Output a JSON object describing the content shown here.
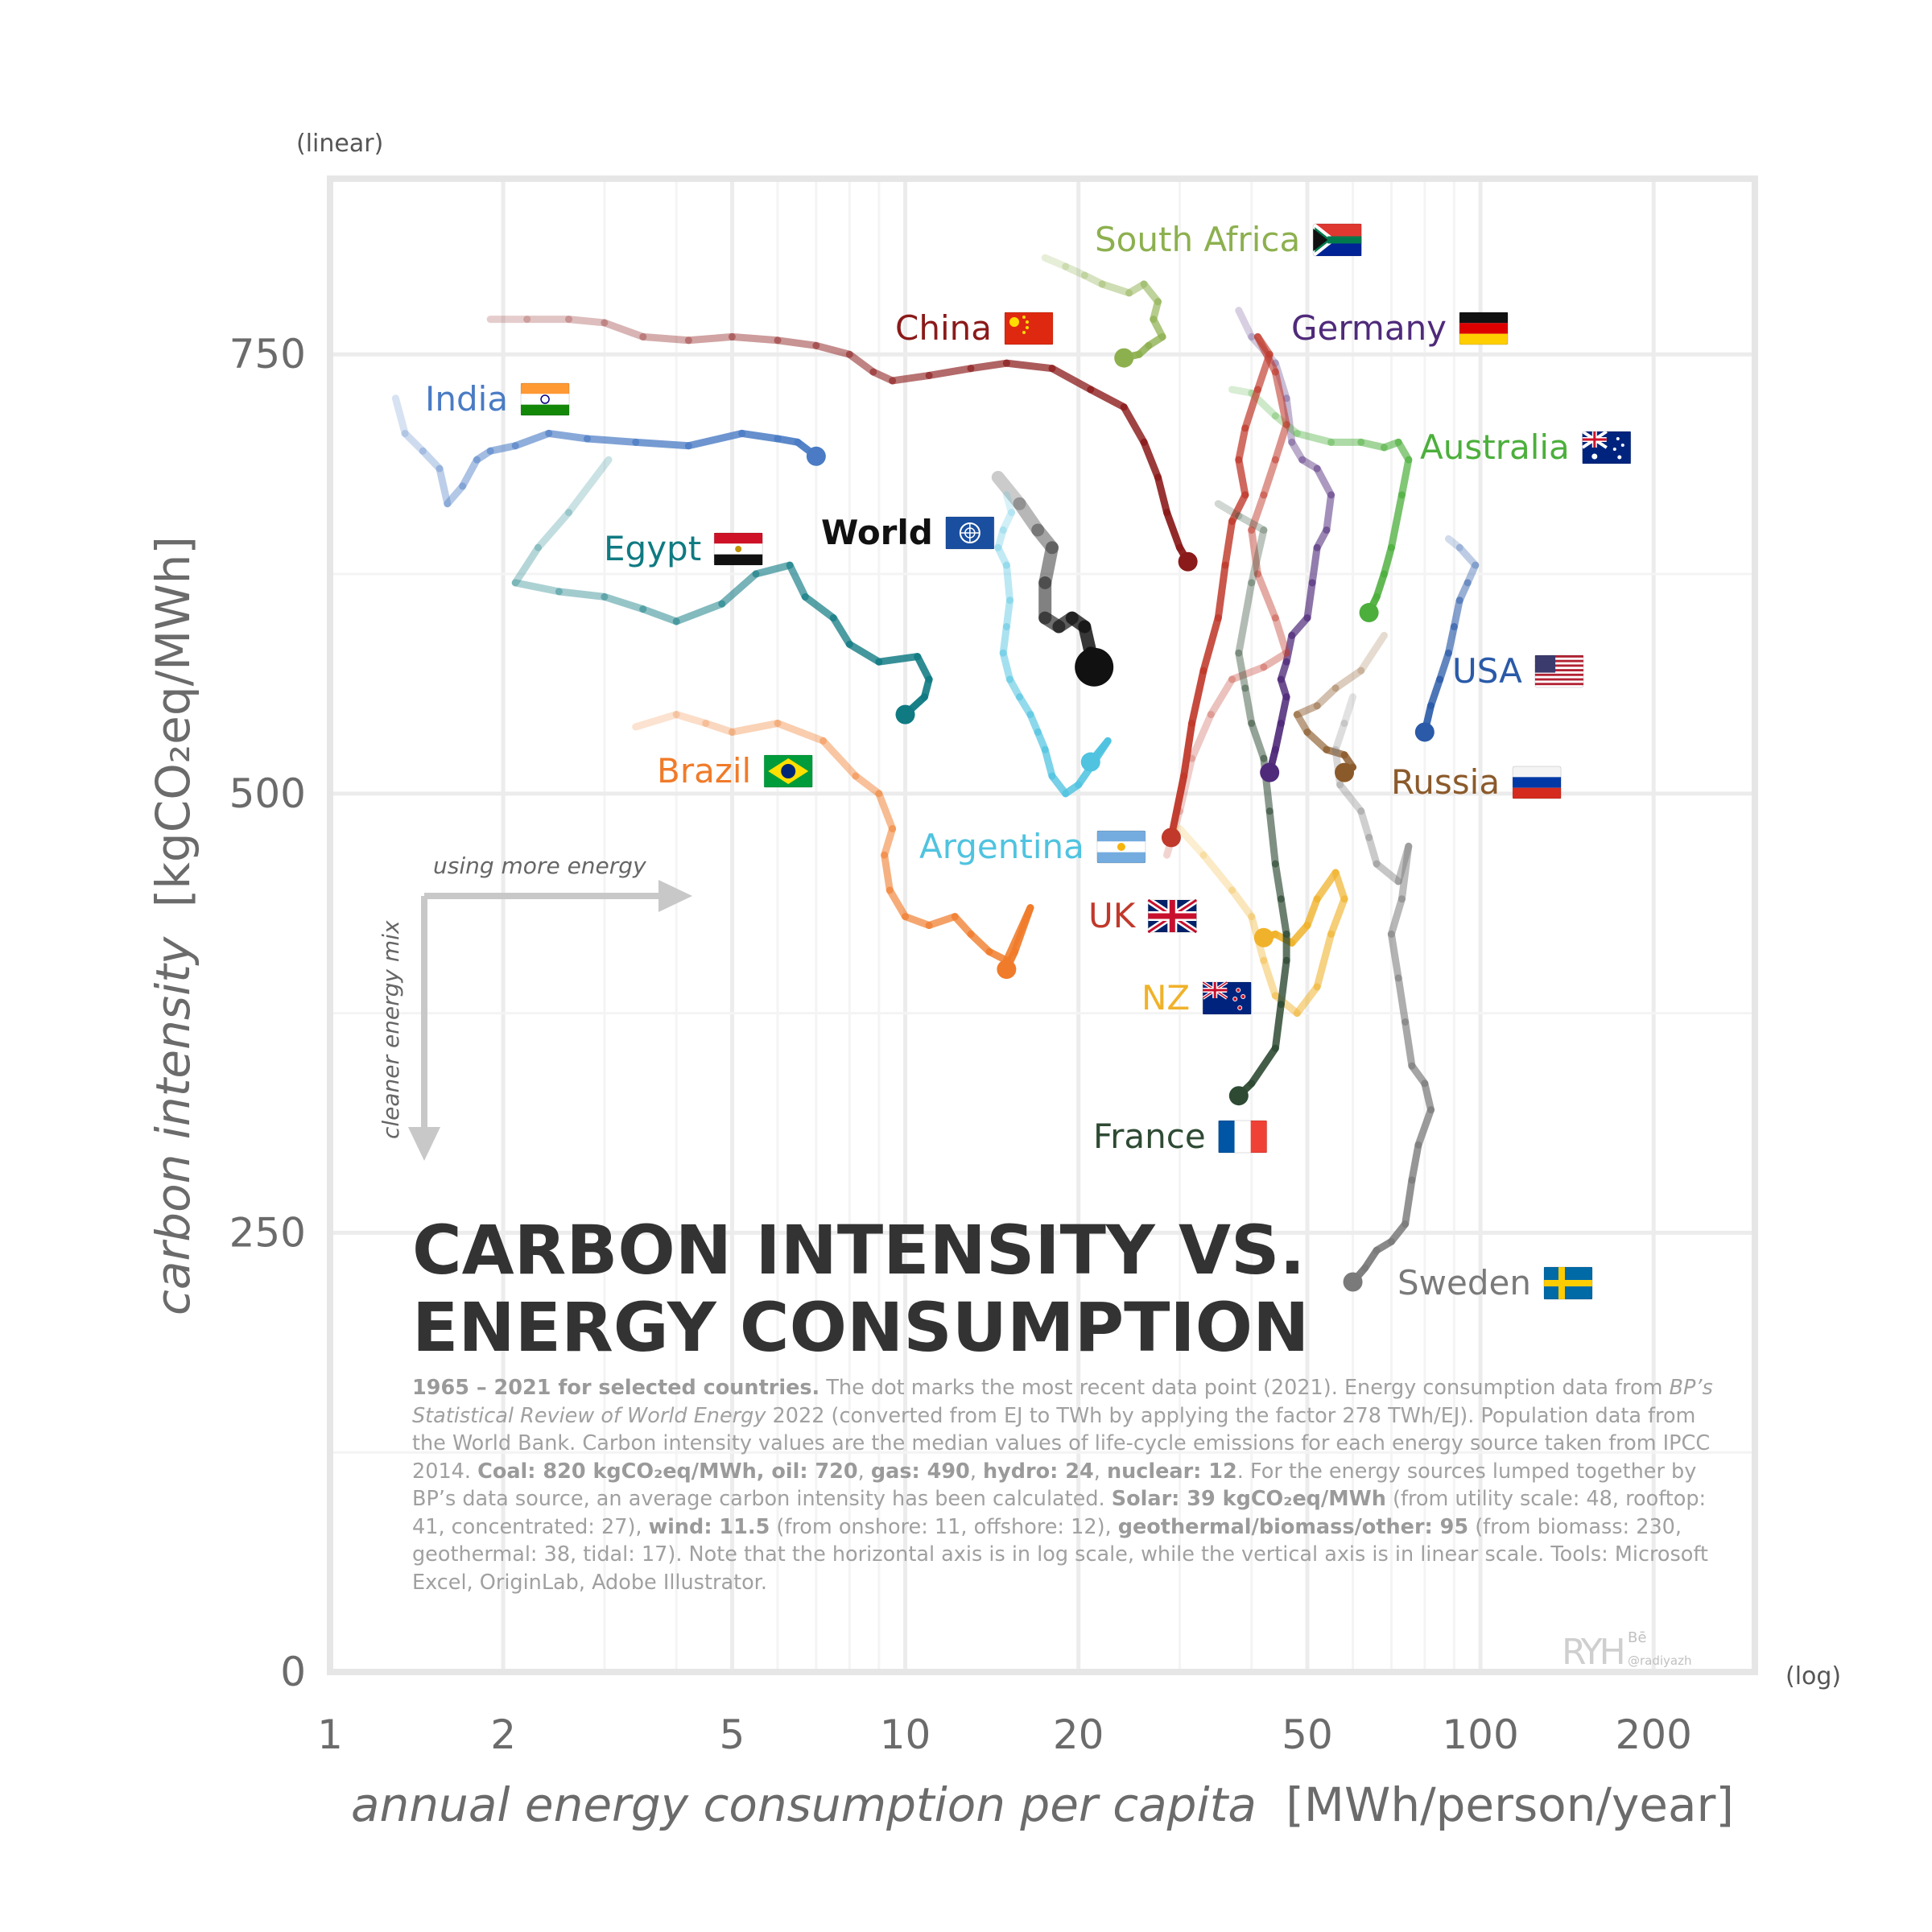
{
  "chart_data": {
    "type": "line",
    "title": "CARBON INTENSITY VS. ENERGY CONSUMPTION",
    "title_lines": [
      "CARBON INTENSITY VS.",
      "ENERGY CONSUMPTION"
    ],
    "xlabel": "annual energy consumption per capita",
    "xlabel_unit": "[MWh/person/year]",
    "ylabel": "carbon intensity",
    "ylabel_unit": "[kgCO₂eq/MWh]",
    "x_scale": "log",
    "y_scale": "linear",
    "x_scale_note": "(log)",
    "y_scale_note": "(linear)",
    "xlim": [
      1,
      300
    ],
    "ylim": [
      0,
      850
    ],
    "x_ticks": [
      1,
      2,
      5,
      10,
      20,
      50,
      100,
      200
    ],
    "y_ticks": [
      0,
      250,
      500,
      750
    ],
    "grid": true,
    "legend": "inline labels with flags",
    "guides": {
      "right": "using more energy",
      "down": "cleaner energy mix"
    },
    "series": [
      {
        "name": "South Africa",
        "color": "#8db04f",
        "flag": "za",
        "points": [
          [
            17.5,
            805
          ],
          [
            19,
            800
          ],
          [
            20.5,
            795
          ],
          [
            22,
            790
          ],
          [
            24.5,
            785
          ],
          [
            26,
            790
          ],
          [
            27.5,
            780
          ],
          [
            27,
            770
          ],
          [
            28,
            760
          ],
          [
            26.5,
            755
          ],
          [
            25.5,
            750
          ],
          [
            24,
            748
          ]
        ]
      },
      {
        "name": "China",
        "color": "#8b1a1a",
        "flag": "cn",
        "points": [
          [
            1.9,
            770
          ],
          [
            2.2,
            770
          ],
          [
            2.6,
            770
          ],
          [
            3,
            768
          ],
          [
            3.5,
            760
          ],
          [
            4.2,
            758
          ],
          [
            5,
            760
          ],
          [
            6,
            758
          ],
          [
            7,
            755
          ],
          [
            8,
            750
          ],
          [
            8.8,
            740
          ],
          [
            9.5,
            735
          ],
          [
            11,
            738
          ],
          [
            13,
            742
          ],
          [
            15,
            745
          ],
          [
            18,
            742
          ],
          [
            21,
            730
          ],
          [
            24,
            720
          ],
          [
            26,
            700
          ],
          [
            27.5,
            680
          ],
          [
            28.5,
            660
          ],
          [
            30,
            640
          ],
          [
            31,
            632
          ]
        ]
      },
      {
        "name": "Germany",
        "color": "#4f2a7a",
        "flag": "de",
        "points": [
          [
            38,
            775
          ],
          [
            40,
            760
          ],
          [
            44,
            745
          ],
          [
            46,
            725
          ],
          [
            47,
            700
          ],
          [
            49,
            690
          ],
          [
            52,
            685
          ],
          [
            55,
            670
          ],
          [
            54,
            650
          ],
          [
            52,
            640
          ],
          [
            51,
            620
          ],
          [
            50,
            600
          ],
          [
            47,
            590
          ],
          [
            46,
            575
          ],
          [
            45,
            565
          ],
          [
            46,
            555
          ],
          [
            45,
            540
          ],
          [
            44,
            525
          ],
          [
            43,
            512
          ]
        ]
      },
      {
        "name": "India",
        "color": "#4a7bc4",
        "flag": "in",
        "points": [
          [
            1.3,
            725
          ],
          [
            1.35,
            705
          ],
          [
            1.45,
            695
          ],
          [
            1.55,
            685
          ],
          [
            1.6,
            665
          ],
          [
            1.7,
            675
          ],
          [
            1.8,
            690
          ],
          [
            1.9,
            695
          ],
          [
            2.1,
            698
          ],
          [
            2.4,
            705
          ],
          [
            2.8,
            702
          ],
          [
            3.4,
            700
          ],
          [
            4.2,
            698
          ],
          [
            5.2,
            705
          ],
          [
            6,
            702
          ],
          [
            6.5,
            700
          ],
          [
            7,
            692
          ]
        ]
      },
      {
        "name": "Australia",
        "color": "#4caf3c",
        "flag": "au",
        "points": [
          [
            37,
            730
          ],
          [
            40,
            728
          ],
          [
            44,
            715
          ],
          [
            48,
            705
          ],
          [
            55,
            700
          ],
          [
            62,
            700
          ],
          [
            68,
            697
          ],
          [
            72,
            700
          ],
          [
            75,
            690
          ],
          [
            73,
            670
          ],
          [
            70,
            640
          ],
          [
            68,
            625
          ],
          [
            66,
            612
          ],
          [
            64,
            603
          ]
        ]
      },
      {
        "name": "Egypt",
        "color": "#0f7a82",
        "flag": "eg",
        "points": [
          [
            3.05,
            690
          ],
          [
            2.6,
            660
          ],
          [
            2.3,
            640
          ],
          [
            2.1,
            620
          ],
          [
            2.5,
            615
          ],
          [
            3,
            612
          ],
          [
            3.5,
            605
          ],
          [
            4,
            598
          ],
          [
            4.8,
            608
          ],
          [
            5.5,
            625
          ],
          [
            6.3,
            630
          ],
          [
            6.7,
            612
          ],
          [
            7.5,
            600
          ],
          [
            8,
            585
          ],
          [
            9,
            575
          ],
          [
            10.5,
            578
          ],
          [
            11,
            565
          ],
          [
            10.8,
            555
          ],
          [
            10,
            545
          ]
        ]
      },
      {
        "name": "World",
        "color": "#111111",
        "flag": "un",
        "points": [
          [
            14.5,
            680
          ],
          [
            15.8,
            665
          ],
          [
            17,
            650
          ],
          [
            18,
            640
          ],
          [
            17.5,
            620
          ],
          [
            17.5,
            600
          ],
          [
            18.5,
            595
          ],
          [
            19.5,
            600
          ],
          [
            20.5,
            595
          ],
          [
            21,
            580
          ],
          [
            21.3,
            572
          ]
        ]
      },
      {
        "name": "USA",
        "color": "#2a5aa8",
        "flag": "us",
        "points": [
          [
            88,
            645
          ],
          [
            92,
            640
          ],
          [
            98,
            630
          ],
          [
            95,
            620
          ],
          [
            92,
            610
          ],
          [
            90,
            595
          ],
          [
            88,
            580
          ],
          [
            85,
            565
          ],
          [
            82,
            550
          ],
          [
            80,
            535
          ]
        ]
      },
      {
        "name": "Russia",
        "color": "#8b5a2b",
        "flag": "ru",
        "points": [
          [
            68,
            590
          ],
          [
            62,
            570
          ],
          [
            56,
            560
          ],
          [
            52,
            550
          ],
          [
            48,
            545
          ],
          [
            50,
            535
          ],
          [
            54,
            525
          ],
          [
            58,
            522
          ],
          [
            60,
            515
          ],
          [
            58,
            512
          ]
        ]
      },
      {
        "name": "Argentina",
        "color": "#4fc3e0",
        "flag": "ar",
        "points": [
          [
            15,
            670
          ],
          [
            15.3,
            660
          ],
          [
            14.8,
            650
          ],
          [
            14.5,
            640
          ],
          [
            15,
            630
          ],
          [
            15.2,
            610
          ],
          [
            15,
            595
          ],
          [
            14.8,
            580
          ],
          [
            15.2,
            565
          ],
          [
            15.8,
            555
          ],
          [
            16.5,
            545
          ],
          [
            17,
            535
          ],
          [
            17.5,
            525
          ],
          [
            18,
            510
          ],
          [
            19,
            500
          ],
          [
            20,
            505
          ],
          [
            21,
            515
          ],
          [
            22.5,
            530
          ],
          [
            21,
            518
          ]
        ]
      },
      {
        "name": "Brazil",
        "color": "#f07b2a",
        "flag": "br",
        "points": [
          [
            3.4,
            538
          ],
          [
            4,
            545
          ],
          [
            4.5,
            540
          ],
          [
            5,
            535
          ],
          [
            6,
            540
          ],
          [
            7.2,
            530
          ],
          [
            8.2,
            510
          ],
          [
            9,
            500
          ],
          [
            9.5,
            480
          ],
          [
            9.2,
            465
          ],
          [
            9.4,
            445
          ],
          [
            10,
            430
          ],
          [
            11,
            425
          ],
          [
            12.2,
            430
          ],
          [
            13,
            420
          ],
          [
            14,
            410
          ],
          [
            15,
            405
          ],
          [
            16.5,
            435
          ],
          [
            15.5,
            410
          ],
          [
            15,
            400
          ]
        ]
      },
      {
        "name": "UK",
        "color": "#c0392b",
        "flag": "gb",
        "points": [
          [
            28.5,
            465
          ],
          [
            30,
            490
          ],
          [
            31.5,
            520
          ],
          [
            34,
            545
          ],
          [
            37,
            565
          ],
          [
            42,
            572
          ],
          [
            46,
            580
          ],
          [
            44,
            600
          ],
          [
            41,
            625
          ],
          [
            40,
            650
          ],
          [
            42,
            670
          ],
          [
            44,
            690
          ],
          [
            46,
            710
          ],
          [
            44,
            740
          ],
          [
            41,
            760
          ],
          [
            43,
            750
          ],
          [
            41,
            730
          ],
          [
            39,
            708
          ],
          [
            38,
            690
          ],
          [
            39,
            670
          ],
          [
            37,
            655
          ],
          [
            36,
            630
          ],
          [
            35,
            600
          ],
          [
            33,
            570
          ],
          [
            31.5,
            540
          ],
          [
            30.5,
            510
          ],
          [
            29,
            475
          ]
        ]
      },
      {
        "name": "NZ",
        "color": "#f0b22a",
        "flag": "nz",
        "points": [
          [
            30,
            480
          ],
          [
            33,
            465
          ],
          [
            37,
            445
          ],
          [
            40,
            430
          ],
          [
            42,
            405
          ],
          [
            44,
            385
          ],
          [
            48,
            375
          ],
          [
            52,
            390
          ],
          [
            55,
            420
          ],
          [
            58,
            440
          ],
          [
            56,
            455
          ],
          [
            52,
            440
          ],
          [
            50,
            425
          ],
          [
            47,
            415
          ],
          [
            44,
            420
          ],
          [
            42,
            418
          ]
        ]
      },
      {
        "name": "France",
        "color": "#2e4a33",
        "flag": "fr",
        "points": [
          [
            35,
            665
          ],
          [
            38,
            658
          ],
          [
            42,
            650
          ],
          [
            40,
            620
          ],
          [
            38,
            580
          ],
          [
            39,
            560
          ],
          [
            40,
            540
          ],
          [
            42,
            520
          ],
          [
            43,
            490
          ],
          [
            44,
            460
          ],
          [
            45,
            440
          ],
          [
            46,
            420
          ],
          [
            46,
            405
          ],
          [
            45,
            380
          ],
          [
            44,
            355
          ],
          [
            40,
            335
          ],
          [
            38,
            328
          ]
        ]
      },
      {
        "name": "Sweden",
        "color": "#7a7a7a",
        "flag": "se",
        "points": [
          [
            60,
            555
          ],
          [
            58,
            540
          ],
          [
            56,
            525
          ],
          [
            57,
            505
          ],
          [
            62,
            490
          ],
          [
            64,
            475
          ],
          [
            66,
            460
          ],
          [
            72,
            450
          ],
          [
            75,
            470
          ],
          [
            73,
            440
          ],
          [
            70,
            420
          ],
          [
            72,
            395
          ],
          [
            74,
            370
          ],
          [
            76,
            345
          ],
          [
            80,
            335
          ],
          [
            82,
            320
          ],
          [
            78,
            300
          ],
          [
            76,
            280
          ],
          [
            74,
            255
          ],
          [
            70,
            245
          ],
          [
            66,
            240
          ],
          [
            63,
            230
          ],
          [
            60,
            222
          ]
        ]
      }
    ]
  },
  "description": {
    "lead": "1965 – 2021 for selected countries.",
    "text1": " The dot marks the most recent data point (2021). Energy consumption data from ",
    "source_italic": "BP’s Statistical Review of World Energy",
    "text2": " 2022 (converted from EJ to TWh by applying the factor 278 TWh/EJ). Population data from the World Bank. Carbon intensity values are the median values of life-cycle emissions for each energy source taken from IPCC 2014. ",
    "coal": "Coal: 820 kgCO₂eq/MWh, oil: 720",
    "comma1": ", ",
    "gas": "gas: 490",
    "comma2": ", ",
    "hydro": "hydro: 24",
    "comma3": ", ",
    "nuclear": "nuclear: 12",
    "text3": ". For the energy sources lumped together by BP’s data source, an average carbon intensity has been calculated. ",
    "solar": "Solar: 39 kgCO₂eq/MWh",
    "text4": " (from utility scale: 48, rooftop: 41, concentrated: 27), ",
    "wind": "wind: 11.5",
    "text5": " (from onshore: 11, offshore: 12), ",
    "geo": "geothermal/biomass/other: 95",
    "text6": " (from biomass: 230, geothermal: 38, tidal: 17). Note that the horizontal axis is in log scale, while the vertical axis is in linear scale. Tools: Microsoft Excel, OriginLab, Adobe Illustrator."
  },
  "credit": {
    "logo": "RYH",
    "handle": "@radiyazh",
    "social": "Bē"
  }
}
